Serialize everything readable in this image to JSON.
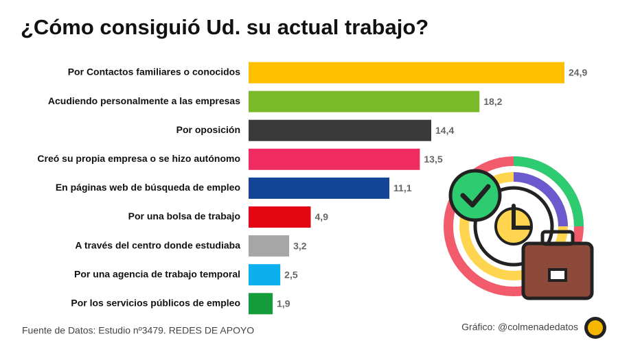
{
  "chart_data": {
    "type": "bar",
    "orientation": "horizontal",
    "title": "¿Cómo consiguió Ud. su actual trabajo?",
    "categories": [
      "Por Contactos familiares o conocidos",
      "Acudiendo personalmente a las empresas",
      "Por oposición",
      "Creó su propia empresa o se hizo autónomo",
      "En páginas web de búsqueda de empleo",
      "Por una bolsa de trabajo",
      "A través del centro donde estudiaba",
      "Por una agencia de trabajo temporal",
      "Por los servicios públicos de empleo"
    ],
    "values": [
      24.9,
      18.2,
      14.4,
      13.5,
      11.1,
      4.9,
      3.2,
      2.5,
      1.9
    ],
    "value_labels": [
      "24,9",
      "18,2",
      "14,4",
      "13,5",
      "11,1",
      "4,9",
      "3,2",
      "2,5",
      "1,9"
    ],
    "colors": [
      "#ffc000",
      "#7ab929",
      "#3a3a3a",
      "#ef2c5f",
      "#134496",
      "#e30613",
      "#a6a6a6",
      "#0db0ef",
      "#149b3a"
    ],
    "source": "Fuente de Datos: Estudio nº3479. REDES DE APOYO",
    "credit": "Gráfico: @colmenadedatos"
  }
}
